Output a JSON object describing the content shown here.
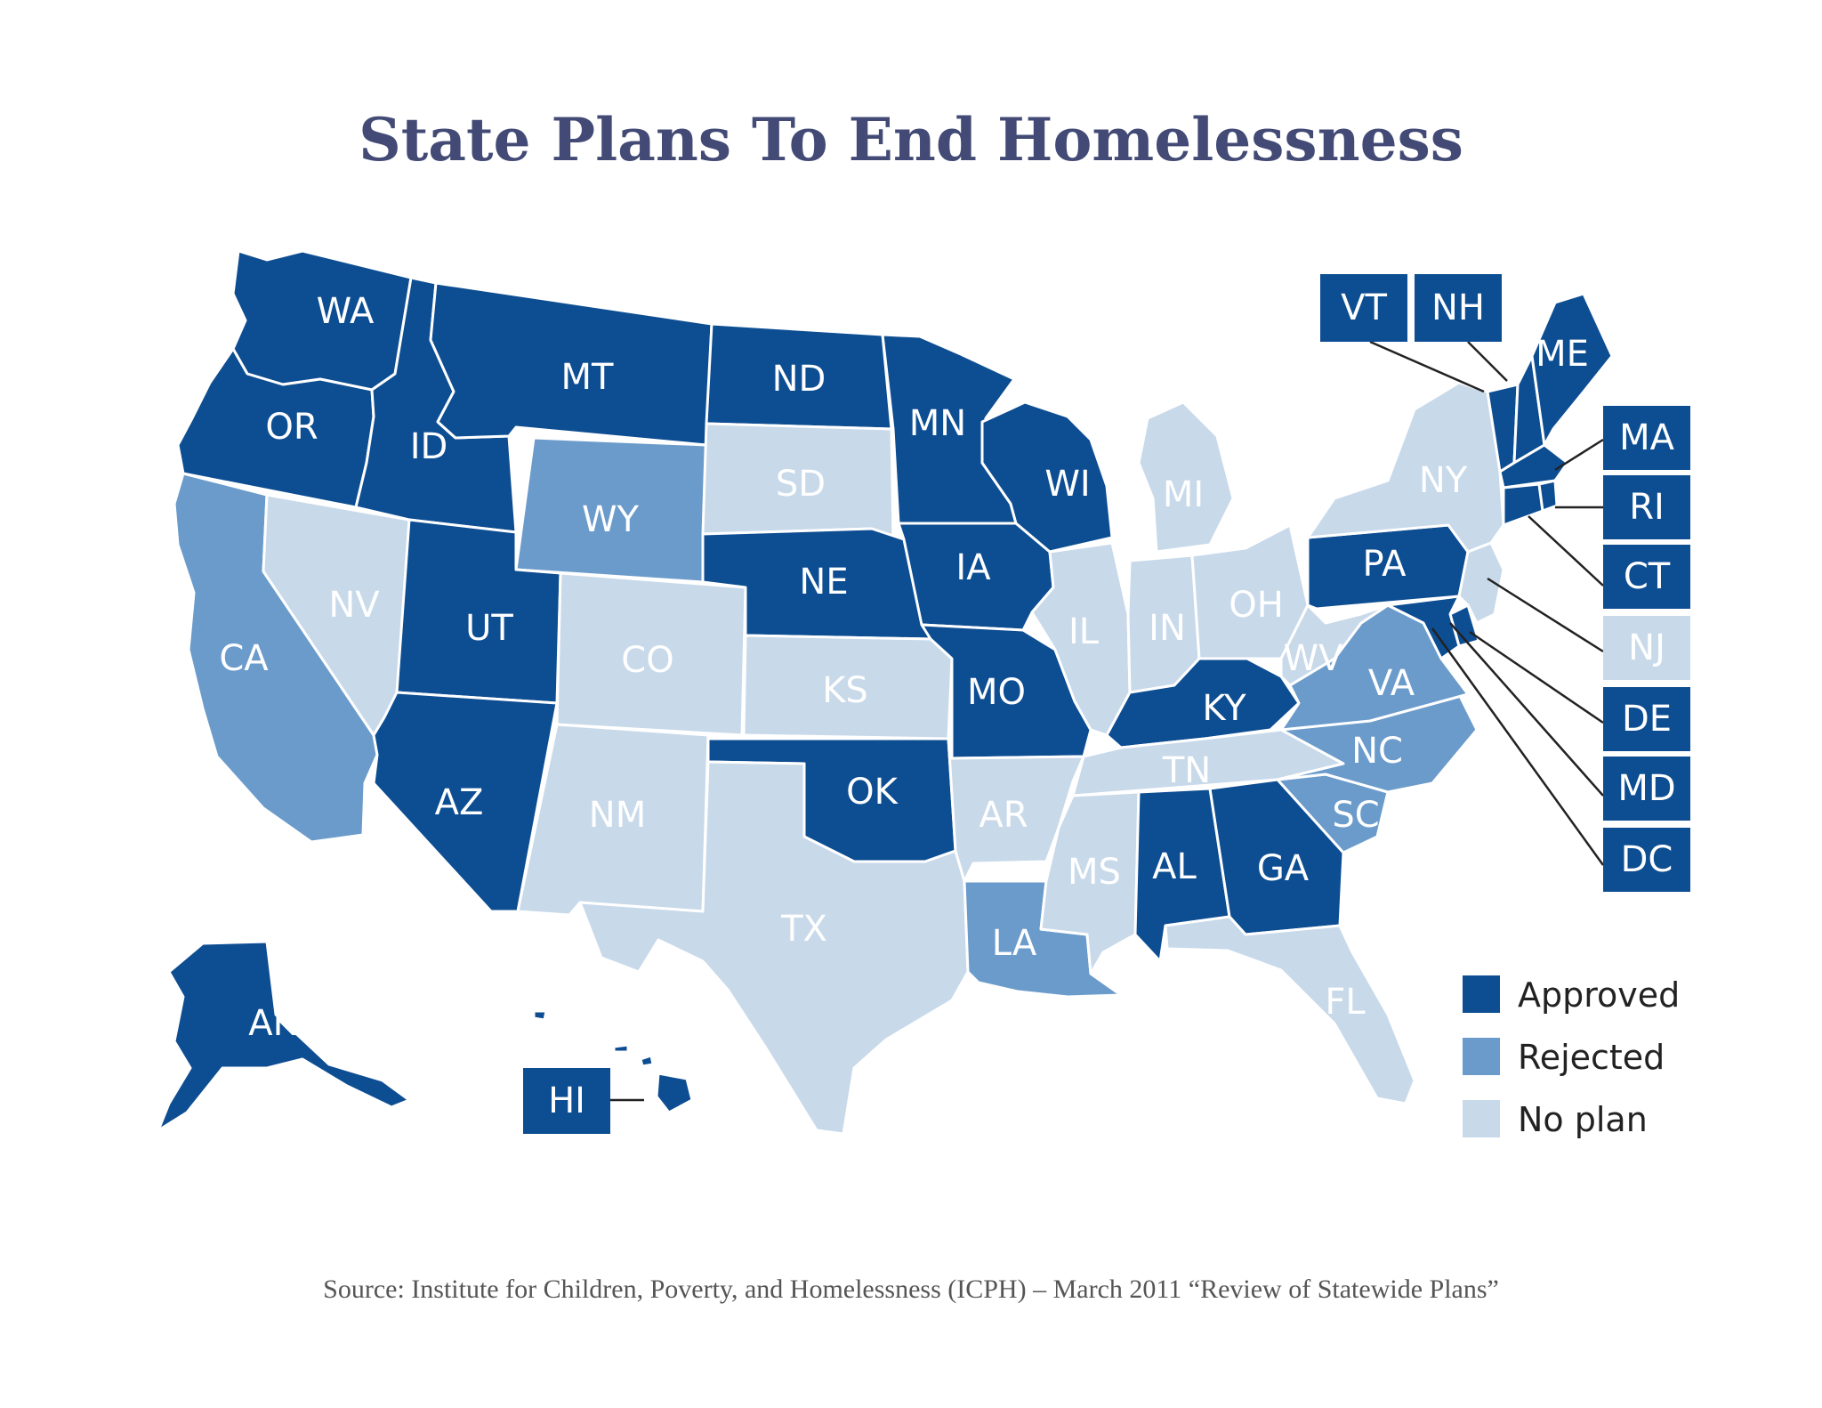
{
  "title": "State Plans To End Homelessness",
  "source": "Source: Institute for Children, Poverty, and Homelessness (ICPH) – March 2011 “Review of Statewide Plans”",
  "colors": {
    "Approved": "#0d4d92",
    "Rejected": "#6b9bcb",
    "No plan": "#c8d9ea"
  },
  "legend": [
    {
      "status": "Approved",
      "label": "Approved"
    },
    {
      "status": "Rejected",
      "label": "Rejected"
    },
    {
      "status": "No plan",
      "label": "No plan"
    }
  ],
  "states": {
    "WA": {
      "label": "WA",
      "status": "Approved"
    },
    "OR": {
      "label": "OR",
      "status": "Approved"
    },
    "CA": {
      "label": "CA",
      "status": "Rejected"
    },
    "NV": {
      "label": "NV",
      "status": "No plan"
    },
    "ID": {
      "label": "ID",
      "status": "Approved"
    },
    "MT": {
      "label": "MT",
      "status": "Approved"
    },
    "WY": {
      "label": "WY",
      "status": "Rejected"
    },
    "UT": {
      "label": "UT",
      "status": "Approved"
    },
    "AZ": {
      "label": "AZ",
      "status": "Approved"
    },
    "CO": {
      "label": "CO",
      "status": "No plan"
    },
    "NM": {
      "label": "NM",
      "status": "No plan"
    },
    "ND": {
      "label": "ND",
      "status": "Approved"
    },
    "SD": {
      "label": "SD",
      "status": "No plan"
    },
    "NE": {
      "label": "NE",
      "status": "Approved"
    },
    "KS": {
      "label": "KS",
      "status": "No plan"
    },
    "OK": {
      "label": "OK",
      "status": "Approved"
    },
    "TX": {
      "label": "TX",
      "status": "No plan"
    },
    "MN": {
      "label": "MN",
      "status": "Approved"
    },
    "IA": {
      "label": "IA",
      "status": "Approved"
    },
    "MO": {
      "label": "MO",
      "status": "Approved"
    },
    "AR": {
      "label": "AR",
      "status": "No plan"
    },
    "LA": {
      "label": "LA",
      "status": "Rejected"
    },
    "WI": {
      "label": "WI",
      "status": "Approved"
    },
    "IL": {
      "label": "IL",
      "status": "No plan"
    },
    "MI": {
      "label": "MI",
      "status": "No plan"
    },
    "IN": {
      "label": "IN",
      "status": "No plan"
    },
    "OH": {
      "label": "OH",
      "status": "No plan"
    },
    "KY": {
      "label": "KY",
      "status": "Approved"
    },
    "TN": {
      "label": "TN",
      "status": "No plan"
    },
    "MS": {
      "label": "MS",
      "status": "No plan"
    },
    "AL": {
      "label": "AL",
      "status": "Approved"
    },
    "GA": {
      "label": "GA",
      "status": "Approved"
    },
    "FL": {
      "label": "FL",
      "status": "No plan"
    },
    "SC": {
      "label": "SC",
      "status": "Rejected"
    },
    "NC": {
      "label": "NC",
      "status": "Rejected"
    },
    "VA": {
      "label": "VA",
      "status": "Rejected"
    },
    "WV": {
      "label": "WV",
      "status": "No plan"
    },
    "PA": {
      "label": "PA",
      "status": "Approved"
    },
    "NY": {
      "label": "NY",
      "status": "No plan"
    },
    "ME": {
      "label": "ME",
      "status": "Approved"
    },
    "VT": {
      "label": "VT",
      "status": "Approved"
    },
    "NH": {
      "label": "NH",
      "status": "Approved"
    },
    "MA": {
      "label": "MA",
      "status": "Approved"
    },
    "RI": {
      "label": "RI",
      "status": "Approved"
    },
    "CT": {
      "label": "CT",
      "status": "Approved"
    },
    "NJ": {
      "label": "NJ",
      "status": "No plan"
    },
    "DE": {
      "label": "DE",
      "status": "Approved"
    },
    "MD": {
      "label": "MD",
      "status": "Approved"
    },
    "DC": {
      "label": "DC",
      "status": "Approved"
    },
    "AK": {
      "label": "AK",
      "status": "Approved"
    },
    "HI": {
      "label": "HI",
      "status": "Approved"
    }
  }
}
